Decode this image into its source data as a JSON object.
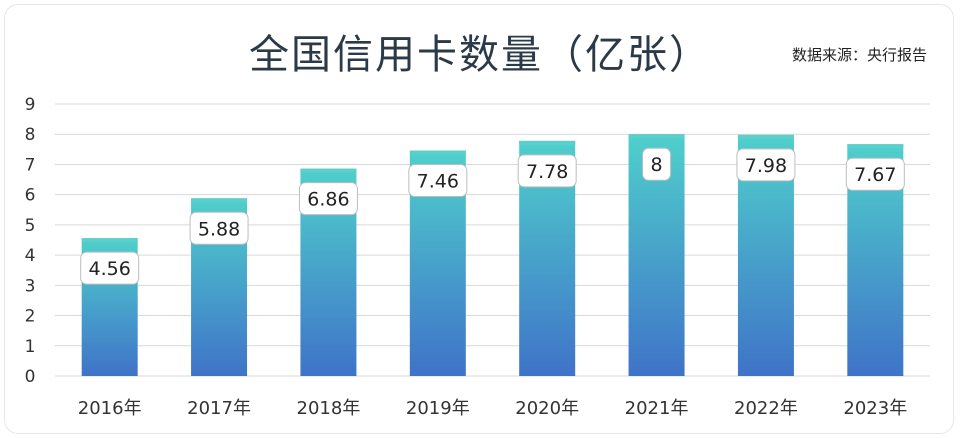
{
  "title": "全国信用卡数量（亿张）",
  "source": "数据来源：央行报告",
  "colors": {
    "bar_top": "#4fd0cc",
    "bar_bottom": "#3f73c8",
    "bar_cap": "#5ccfcb",
    "grid": "#d9d9d9",
    "label_border": "#bdbdbd"
  },
  "chart_data": {
    "type": "bar",
    "title": "全国信用卡数量（亿张）",
    "categories": [
      "2016年",
      "2017年",
      "2018年",
      "2019年",
      "2020年",
      "2021年",
      "2022年",
      "2023年"
    ],
    "values": [
      4.56,
      5.88,
      6.86,
      7.46,
      7.78,
      8,
      7.98,
      7.67
    ],
    "data_labels": [
      "4.56",
      "5.88",
      "6.86",
      "7.46",
      "7.78",
      "8",
      "7.98",
      "7.67"
    ],
    "ylim": [
      0,
      9
    ],
    "yticks": [
      "0",
      "1",
      "2",
      "3",
      "4",
      "5",
      "6",
      "7",
      "8",
      "9"
    ],
    "grid": true,
    "legend": "none"
  }
}
